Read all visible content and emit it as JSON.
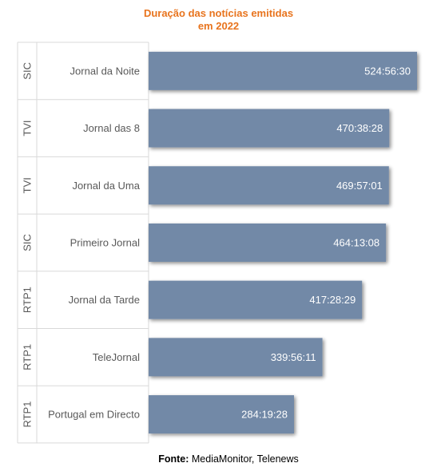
{
  "chart_data": {
    "type": "bar",
    "orientation": "horizontal",
    "title_lines": [
      "Duração das notícias emitidas",
      "em 2022"
    ],
    "categories": [
      {
        "channel": "SIC",
        "program": "Jornal da Noite"
      },
      {
        "channel": "TVI",
        "program": "Jornal das 8"
      },
      {
        "channel": "TVI",
        "program": "Jornal da Uma"
      },
      {
        "channel": "SIC",
        "program": "Primeiro Jornal"
      },
      {
        "channel": "RTP1",
        "program": "Jornal da Tarde"
      },
      {
        "channel": "RTP1",
        "program": "TeleJornal"
      },
      {
        "channel": "RTP1",
        "program": "Portugal em Directo"
      }
    ],
    "values_hours": [
      524.942,
      470.641,
      469.95,
      464.219,
      417.475,
      339.936,
      284.324
    ],
    "data_labels": [
      "524:56:30",
      "470:38:28",
      "469:57:01",
      "464:13:08",
      "417:28:29",
      "339:56:11",
      "284:19:28"
    ],
    "bar_color": "#7289a7",
    "label_color": "#ffffff",
    "grid": false,
    "legend": "none"
  },
  "source": {
    "label": "Fonte:",
    "text": "MediaMonitor, Telenews"
  }
}
